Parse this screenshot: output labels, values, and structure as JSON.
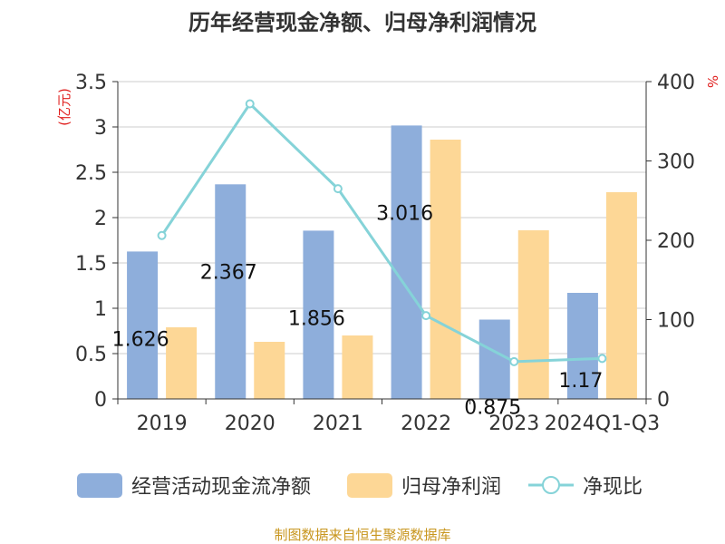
{
  "chart_data": {
    "type": "bar",
    "title": "历年经营现金净额、归母净利润情况",
    "categories": [
      "2019",
      "2020",
      "2021",
      "2022",
      "2023",
      "2024Q1-Q3"
    ],
    "series": [
      {
        "name": "经营活动现金流净额",
        "kind": "bar",
        "axis": "left",
        "color": "#8eaedb",
        "values": [
          1.626,
          2.367,
          1.856,
          3.016,
          0.875,
          1.17
        ],
        "labels": [
          "1.626",
          "2.367",
          "1.856",
          "3.016",
          "0.875",
          "1.17"
        ]
      },
      {
        "name": "归母净利润",
        "kind": "bar",
        "axis": "left",
        "color": "#fdd796",
        "values": [
          0.79,
          0.63,
          0.7,
          2.86,
          1.86,
          2.28
        ]
      },
      {
        "name": "净现比",
        "kind": "line",
        "axis": "right",
        "color": "#85d3d8",
        "values": [
          206,
          372,
          265,
          105,
          47,
          51
        ]
      }
    ],
    "y_left": {
      "label": "(亿元)",
      "ylim": [
        0,
        3.5
      ],
      "ticks": [
        0,
        0.5,
        1,
        1.5,
        2,
        2.5,
        3,
        3.5
      ],
      "tick_labels": [
        "0",
        "0.5",
        "1",
        "1.5",
        "2",
        "2.5",
        "3",
        "3.5"
      ]
    },
    "y_right": {
      "label": "%",
      "ylim": [
        0,
        400
      ],
      "ticks": [
        0,
        100,
        200,
        300,
        400
      ],
      "tick_labels": [
        "0",
        "100",
        "200",
        "300",
        "400"
      ]
    },
    "grid": true,
    "legend": "bottom"
  },
  "footer": "制图数据来自恒生聚源数据库",
  "colors": {
    "axis_left_label": "#e0201f",
    "footer": "#c8961e",
    "grid": "#cccccc",
    "axis": "#333333"
  }
}
